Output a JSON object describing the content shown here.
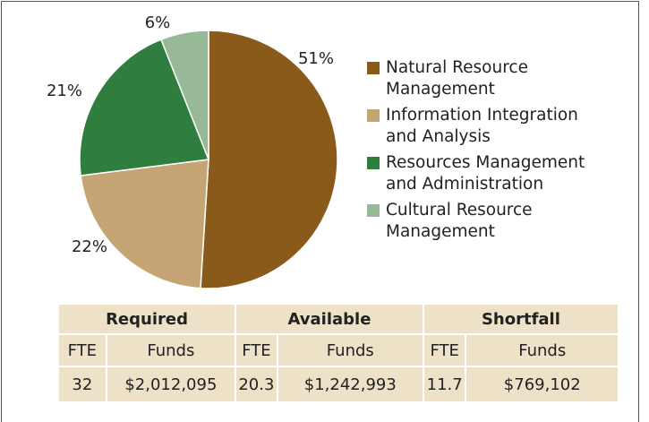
{
  "chart_data": {
    "type": "pie",
    "categories": [
      "Natural Resource Management",
      "Information Integration and Analysis",
      "Resources Management and Administration",
      "Cultural Resource Management"
    ],
    "values": [
      51,
      22,
      21,
      6
    ],
    "value_labels": [
      "51%",
      "22%",
      "21%",
      "6%"
    ],
    "colors": [
      "#8a5a1b",
      "#c6a574",
      "#2f7d3f",
      "#97b998"
    ]
  },
  "table": {
    "groups": [
      "Required",
      "Available",
      "Shortfall"
    ],
    "subheaders": [
      "FTE",
      "Funds",
      "FTE",
      "Funds",
      "FTE",
      "Funds"
    ],
    "rows": [
      [
        "32",
        "$2,012,095",
        "20.3",
        "$1,242,993",
        "11.7",
        "$769,102"
      ]
    ]
  }
}
